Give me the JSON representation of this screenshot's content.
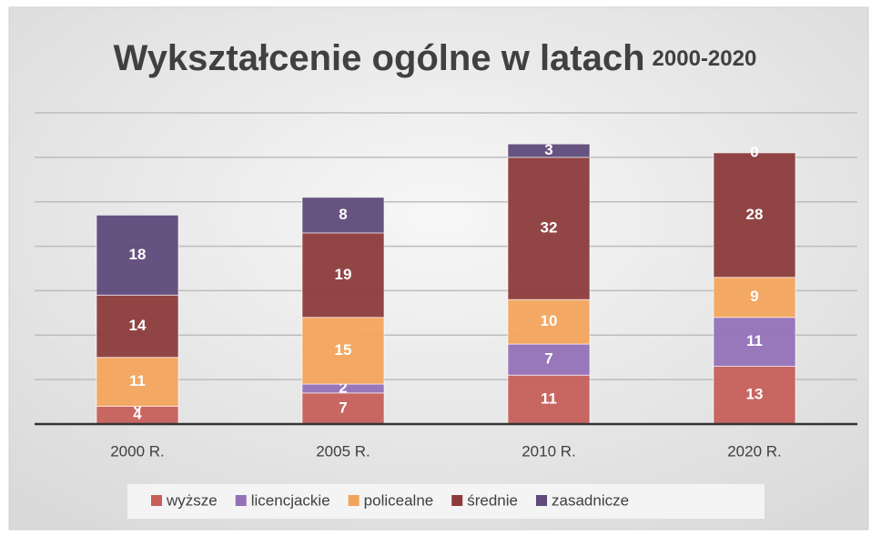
{
  "chart_data": {
    "type": "stacked_bar",
    "title": [
      "Wykształcenie ogólne w latach",
      "2000-2020"
    ],
    "categories": [
      "2000 R.",
      "2005 R.",
      "2010 R.",
      "2020 R."
    ],
    "series": [
      {
        "name": "wyższe",
        "color": "#c65f5b",
        "values": [
          4,
          7,
          11,
          13
        ]
      },
      {
        "name": "licencjackie",
        "color": "#9371b8",
        "values": [
          0,
          2,
          7,
          11
        ]
      },
      {
        "name": "policealne",
        "color": "#f3a45c",
        "values": [
          11,
          15,
          10,
          9
        ]
      },
      {
        "name": "średnie",
        "color": "#8c3b3b",
        "values": [
          14,
          19,
          32,
          28
        ]
      },
      {
        "name": "zasadnicze",
        "color": "#5f4a7a",
        "values": [
          18,
          8,
          3,
          0
        ]
      }
    ],
    "ylim": [
      0,
      70
    ],
    "yticks": [
      0,
      10,
      20,
      30,
      40,
      50,
      60,
      70
    ],
    "grid": true,
    "legend": "bottom"
  }
}
